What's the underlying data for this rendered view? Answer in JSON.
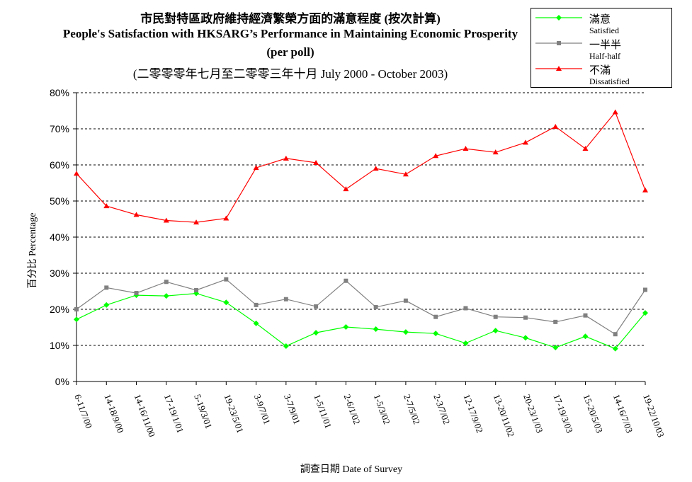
{
  "chart_data": {
    "type": "line",
    "title_zh": "市民對特區政府維持經濟繁榮方面的滿意程度 (按次計算)",
    "title_en": "People's Satisfaction with HKSARG’s Performance in Maintaining Economic Prosperity",
    "subtitle": "(per poll)",
    "period": "(二零零零年七月至二零零三年十月 July 2000 -  October 2003)",
    "ylabel": "百分比 Percentage",
    "xlabel": "調查日期 Date of Survey",
    "ylim": [
      0,
      80
    ],
    "yticks": [
      "0%",
      "10%",
      "20%",
      "30%",
      "40%",
      "50%",
      "60%",
      "70%",
      "80%"
    ],
    "grid": true,
    "legend_position": "top-right",
    "categories": [
      "6-11/7/00",
      "14-18/9/00",
      "14-16/11/00",
      "17-19/1/01",
      "5-19/3/01",
      "19-23/5/01",
      "3-9/7/01",
      "3-7/9/01",
      "1-5/11/01",
      "2-6/1/02",
      "1-5/3/02",
      "2-7/5/02",
      "2-3/7/02",
      "12-17/9/02",
      "13-20/11/02",
      "20-23/1/03",
      "17-19/3/03",
      "15-20/5/03",
      "14-16/7/03",
      "19-22/10/03"
    ],
    "series": [
      {
        "name": "滿意",
        "name_en": "Satisfied",
        "color": "#00ff00",
        "marker": "diamond",
        "values": [
          17.2,
          21.2,
          23.9,
          23.7,
          24.4,
          21.9,
          16.1,
          9.8,
          13.5,
          15.1,
          14.5,
          13.7,
          13.3,
          10.6,
          14.1,
          12.1,
          9.4,
          12.5,
          9.1,
          19.0
        ]
      },
      {
        "name": "一半半",
        "name_en": "Half-half",
        "color": "#808080",
        "marker": "square",
        "values": [
          20.0,
          26.0,
          24.5,
          27.6,
          25.3,
          28.3,
          21.2,
          22.8,
          20.8,
          27.9,
          20.6,
          22.4,
          17.9,
          20.3,
          17.9,
          17.7,
          16.5,
          18.3,
          13.1,
          25.4
        ]
      },
      {
        "name": "不滿",
        "name_en": "Dissatisfied",
        "color": "#ff0000",
        "marker": "triangle",
        "values": [
          57.6,
          48.6,
          46.2,
          44.6,
          44.1,
          45.2,
          59.2,
          61.8,
          60.6,
          53.3,
          59.0,
          57.4,
          62.5,
          64.5,
          63.5,
          66.2,
          70.6,
          64.5,
          74.6,
          53.0
        ]
      }
    ]
  }
}
